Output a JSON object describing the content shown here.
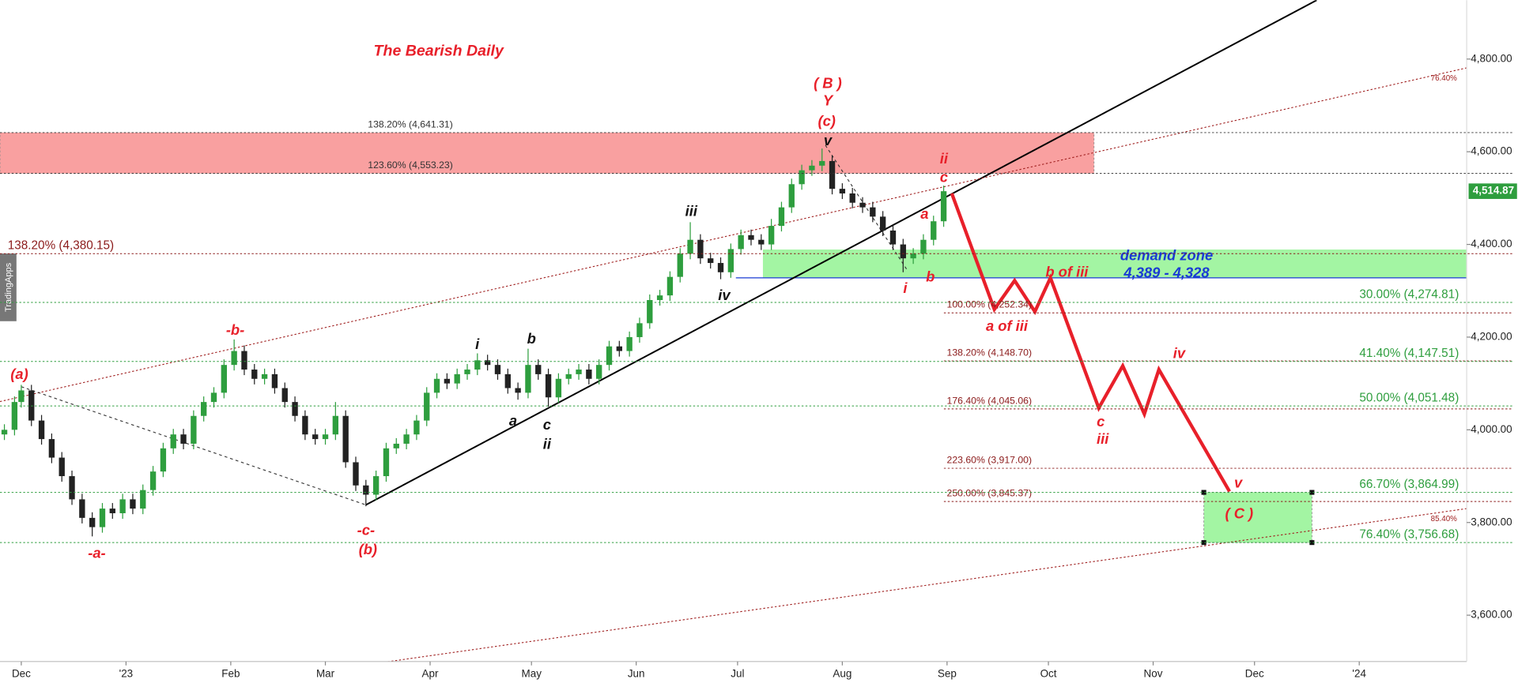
{
  "chart_data": {
    "type": "candlestick",
    "title": "The Bearish Daily",
    "watermark": "TradingApps",
    "xlim": [
      -6.3,
      427.8
    ],
    "ylim": [
      3500,
      4927
    ],
    "xticks": [
      {
        "value": 0,
        "label": "Dec"
      },
      {
        "value": 31,
        "label": "'23"
      },
      {
        "value": 62,
        "label": "Feb"
      },
      {
        "value": 90,
        "label": "Mar"
      },
      {
        "value": 121,
        "label": "Apr"
      },
      {
        "value": 151,
        "label": "May"
      },
      {
        "value": 182,
        "label": "Jun"
      },
      {
        "value": 212,
        "label": "Jul"
      },
      {
        "value": 243,
        "label": "Aug"
      },
      {
        "value": 274,
        "label": "Sep"
      },
      {
        "value": 304,
        "label": "Oct"
      },
      {
        "value": 335,
        "label": "Nov"
      },
      {
        "value": 365,
        "label": "Dec"
      },
      {
        "value": 396,
        "label": "'24"
      }
    ],
    "yticks": [
      {
        "value": 3600,
        "label": "3,600.00"
      },
      {
        "value": 3800,
        "label": "3,800.00"
      },
      {
        "value": 4000,
        "label": "4,000.00"
      },
      {
        "value": 4200,
        "label": "4,200.00"
      },
      {
        "value": 4400,
        "label": "4,400.00"
      },
      {
        "value": 4600,
        "label": "4,600.00"
      },
      {
        "value": 4800,
        "label": "4,800.00"
      }
    ],
    "up_color": "#2e9e3e",
    "down_color": "#222222",
    "candles": {
      "x": [
        -5,
        -2,
        0,
        3,
        6,
        9,
        12,
        15,
        18,
        21,
        24,
        27,
        30,
        33,
        36,
        39,
        42,
        45,
        48,
        51,
        54,
        57,
        60,
        63,
        66,
        69,
        72,
        75,
        78,
        81,
        84,
        87,
        90,
        93,
        96,
        99,
        102,
        105,
        108,
        111,
        114,
        117,
        120,
        123,
        126,
        129,
        132,
        135,
        138,
        141,
        144,
        147,
        150,
        153,
        156,
        159,
        162,
        165,
        168,
        171,
        174,
        177,
        180,
        183,
        186,
        189,
        192,
        195,
        198,
        201,
        204,
        207,
        210,
        213,
        216,
        219,
        222,
        225,
        228,
        231,
        234,
        237,
        240,
        243,
        246,
        249,
        252,
        255,
        258,
        261,
        264,
        267,
        270,
        273
      ],
      "open": [
        3990,
        4000,
        4060,
        4085,
        4020,
        3980,
        3940,
        3900,
        3850,
        3810,
        3790,
        3830,
        3820,
        3850,
        3830,
        3870,
        3910,
        3960,
        3990,
        3970,
        4030,
        4060,
        4080,
        4140,
        4170,
        4130,
        4110,
        4120,
        4090,
        4060,
        4030,
        3990,
        3980,
        3990,
        4030,
        3930,
        3880,
        3860,
        3900,
        3960,
        3970,
        3990,
        4020,
        4080,
        4110,
        4100,
        4120,
        4130,
        4150,
        4140,
        4120,
        4090,
        4080,
        4140,
        4120,
        4070,
        4110,
        4120,
        4130,
        4110,
        4140,
        4180,
        4170,
        4200,
        4230,
        4280,
        4290,
        4330,
        4380,
        4410,
        4370,
        4360,
        4340,
        4390,
        4420,
        4410,
        4400,
        4440,
        4480,
        4530,
        4560,
        4570,
        4580,
        4520,
        4510,
        4490,
        4480,
        4460,
        4430,
        4400,
        4370,
        4380,
        4410,
        4450
      ],
      "high": [
        4012,
        4072,
        4097,
        4097,
        4032,
        3992,
        3952,
        3912,
        3862,
        3822,
        3842,
        3842,
        3862,
        3862,
        3882,
        3922,
        3972,
        4002,
        4002,
        4042,
        4072,
        4092,
        4152,
        4195,
        4182,
        4142,
        4132,
        4132,
        4102,
        4072,
        4042,
        4002,
        4002,
        4060,
        4042,
        3942,
        3892,
        3912,
        3972,
        3982,
        4002,
        4032,
        4092,
        4122,
        4122,
        4132,
        4142,
        4165,
        4162,
        4152,
        4132,
        4102,
        4175,
        4152,
        4132,
        4122,
        4132,
        4142,
        4142,
        4152,
        4192,
        4192,
        4212,
        4242,
        4292,
        4302,
        4342,
        4392,
        4448,
        4422,
        4382,
        4372,
        4402,
        4432,
        4432,
        4422,
        4455,
        4492,
        4542,
        4572,
        4582,
        4607,
        4592,
        4532,
        4522,
        4502,
        4492,
        4472,
        4442,
        4412,
        4392,
        4422,
        4462,
        4527
      ],
      "low": [
        3978,
        3988,
        4048,
        4008,
        3968,
        3928,
        3888,
        3838,
        3798,
        3770,
        3778,
        3808,
        3808,
        3818,
        3818,
        3858,
        3898,
        3948,
        3958,
        3958,
        4018,
        4048,
        4068,
        4128,
        4118,
        4098,
        4098,
        4078,
        4048,
        4018,
        3978,
        3968,
        3968,
        3978,
        3918,
        3868,
        3835,
        3848,
        3888,
        3948,
        3958,
        3978,
        4008,
        4068,
        4088,
        4088,
        4108,
        4118,
        4128,
        4108,
        4078,
        4065,
        4068,
        4108,
        4050,
        4058,
        4098,
        4108,
        4098,
        4098,
        4128,
        4158,
        4158,
        4188,
        4218,
        4268,
        4278,
        4318,
        4368,
        4358,
        4348,
        4325,
        4328,
        4378,
        4398,
        4388,
        4388,
        4428,
        4468,
        4518,
        4548,
        4558,
        4508,
        4498,
        4478,
        4468,
        4448,
        4418,
        4388,
        4340,
        4358,
        4368,
        4398,
        4438
      ],
      "close": [
        4000,
        4060,
        4085,
        4020,
        3980,
        3940,
        3900,
        3850,
        3810,
        3790,
        3830,
        3820,
        3850,
        3830,
        3870,
        3910,
        3960,
        3990,
        3970,
        4030,
        4060,
        4080,
        4140,
        4170,
        4130,
        4110,
        4120,
        4090,
        4060,
        4030,
        3990,
        3980,
        3990,
        4030,
        3930,
        3880,
        3860,
        3900,
        3960,
        3970,
        3990,
        4020,
        4080,
        4110,
        4100,
        4120,
        4130,
        4150,
        4140,
        4120,
        4090,
        4080,
        4140,
        4120,
        4070,
        4110,
        4120,
        4130,
        4110,
        4140,
        4180,
        4170,
        4200,
        4230,
        4280,
        4290,
        4330,
        4380,
        4410,
        4370,
        4360,
        4340,
        4390,
        4420,
        4410,
        4400,
        4440,
        4480,
        4530,
        4560,
        4570,
        4580,
        4520,
        4510,
        4490,
        4480,
        4460,
        4430,
        4400,
        4370,
        4380,
        4410,
        4450,
        4514.87
      ]
    },
    "last_price": {
      "value": 4514.87,
      "label": "4,514.87",
      "color": "#2e9e3e"
    },
    "levels": [
      {
        "label": "138.20% (4,641.31)",
        "value": 4641.31,
        "color": "#333333"
      },
      {
        "label": "123.60% (4,553.23)",
        "value": 4553.23,
        "color": "#333333"
      },
      {
        "label": "138.20% (4,380.15)",
        "value": 4380.15,
        "color": "#8b1a1a"
      },
      {
        "label": "30.00% (4,274.81)",
        "value": 4274.81,
        "color": "#2e9e3e"
      },
      {
        "label": "100.00% (4,252.34)",
        "value": 4252.34,
        "color": "#8b1a1a"
      },
      {
        "label": "138.20% (4,148.70)",
        "value": 4148.7,
        "color": "#8b1a1a"
      },
      {
        "label": "41.40% (4,147.51)",
        "value": 4147.51,
        "color": "#2e9e3e"
      },
      {
        "label": "176.40% (4,045.06)",
        "value": 4045.06,
        "color": "#8b1a1a"
      },
      {
        "label": "50.00% (4,051.48)",
        "value": 4051.48,
        "color": "#2e9e3e"
      },
      {
        "label": "223.60% (3,917.00)",
        "value": 3917.0,
        "color": "#8b1a1a"
      },
      {
        "label": "250.00% (3,845.37)",
        "value": 3845.37,
        "color": "#8b1a1a"
      },
      {
        "label": "66.70% (3,864.99)",
        "value": 3864.99,
        "color": "#2e9e3e"
      },
      {
        "label": "76.40% (3,756.68)",
        "value": 3756.68,
        "color": "#2e9e3e"
      }
    ],
    "zones": [
      {
        "x": [
          -6.3,
          317.5
        ],
        "y": [
          4553.23,
          4641.31
        ],
        "color": "#f9a0a0"
      },
      {
        "x": [
          219.5,
          427.8
        ],
        "y": [
          4328,
          4389
        ],
        "color": "#a3f5a3",
        "label": "demand zone",
        "sublabel": "4,389 - 4,328"
      },
      {
        "x": [
          350,
          382
        ],
        "y": [
          3756.68,
          3864.99
        ],
        "color": "#a3f5a3"
      }
    ],
    "demand_line": {
      "x": [
        211.5,
        427.8
      ],
      "value": 4328,
      "color": "#1a3bd4"
    },
    "trendlines": [
      {
        "x": [
          102,
          383.4
        ],
        "y": [
          3838,
          4927
        ],
        "color": "#000000",
        "style": "solid"
      },
      {
        "x": [
          -6.3,
          427.8
        ],
        "y": [
          4061,
          4781
        ],
        "color": "#a02020",
        "style": "dotted",
        "label": "76.40%"
      },
      {
        "x": [
          105,
          427.8
        ],
        "y": [
          3496,
          3830
        ],
        "color": "#a02020",
        "style": "dotted",
        "label": "85.40%"
      },
      {
        "x": [
          0,
          102
        ],
        "y": [
          4093,
          3838
        ],
        "color": "#333333",
        "style": "dashed"
      },
      {
        "x": [
          238,
          262
        ],
        "y": [
          4614,
          4347
        ],
        "color": "#333333",
        "style": "dashed"
      }
    ],
    "projection": {
      "x": [
        275.4,
        288,
        294,
        300,
        304.6,
        318.9,
        326,
        332.4,
        336.7,
        357.6
      ],
      "y": [
        4510,
        4260,
        4322,
        4255,
        4328,
        4047,
        4138,
        4034,
        4130,
        3867
      ],
      "color": "#e8202a"
    },
    "annotations": [
      {
        "text": "(a)",
        "color": "#e8202a"
      },
      {
        "text": "-a-",
        "color": "#e8202a"
      },
      {
        "text": "-b-",
        "color": "#e8202a"
      },
      {
        "text": "-c-",
        "color": "#e8202a"
      },
      {
        "text": "(b)",
        "color": "#e8202a"
      },
      {
        "text": "( B )",
        "color": "#e8202a"
      },
      {
        "text": "Y",
        "color": "#e8202a"
      },
      {
        "text": "(c)",
        "color": "#e8202a"
      },
      {
        "text": "v",
        "color": "#111111"
      },
      {
        "text": "iii",
        "color": "#111111"
      },
      {
        "text": "iv",
        "color": "#111111"
      },
      {
        "text": "i",
        "color": "#111111"
      },
      {
        "text": "b",
        "color": "#111111"
      },
      {
        "text": "a",
        "color": "#111111"
      },
      {
        "text": "c",
        "color": "#111111"
      },
      {
        "text": "ii",
        "color": "#111111"
      },
      {
        "text": "i",
        "color": "#e8202a"
      },
      {
        "text": "b",
        "color": "#e8202a"
      },
      {
        "text": "a",
        "color": "#e8202a"
      },
      {
        "text": "ii",
        "color": "#e8202a"
      },
      {
        "text": "c",
        "color": "#e8202a"
      },
      {
        "text": "a of iii",
        "color": "#e8202a"
      },
      {
        "text": "b of iii",
        "color": "#e8202a"
      },
      {
        "text": "c",
        "color": "#e8202a"
      },
      {
        "text": "iii",
        "color": "#e8202a"
      },
      {
        "text": "iv",
        "color": "#e8202a"
      },
      {
        "text": "v",
        "color": "#e8202a"
      },
      {
        "text": "( C )",
        "color": "#e8202a"
      }
    ]
  }
}
